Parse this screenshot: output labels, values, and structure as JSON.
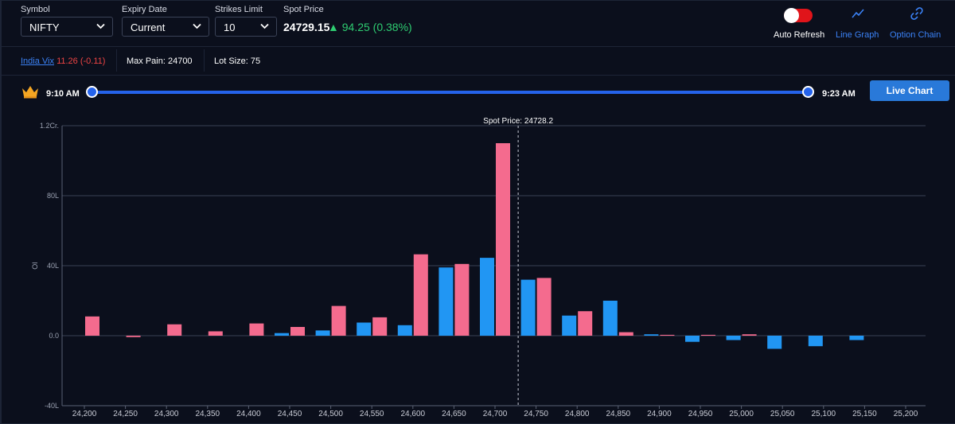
{
  "filters": {
    "symbol": {
      "label": "Symbol",
      "value": "NIFTY"
    },
    "expiry": {
      "label": "Expiry Date",
      "value": "Current"
    },
    "strikes": {
      "label": "Strikes Limit",
      "value": "10"
    }
  },
  "spot": {
    "label": "Spot Price",
    "price": "24729.15",
    "change": "▲ 94.25 (0.38%)",
    "change_color": "#2ecc71"
  },
  "actions": {
    "auto_refresh": "Auto Refresh",
    "auto_refresh_on": false,
    "line_graph": "Line Graph",
    "option_chain": "Option Chain",
    "accent": "#3b82f6"
  },
  "info": {
    "vix_label": "India Vix",
    "vix_value": "11.26 (-0.11)",
    "max_pain": "Max Pain: 24700",
    "lot_size": "Lot Size: 75"
  },
  "timeline": {
    "start": "9:10 AM",
    "end": "9:23 AM",
    "live_chart": "Live Chart"
  },
  "chart_data": {
    "type": "bar",
    "ylabel": "OI",
    "annotation": "Spot Price: 24728.2",
    "spot_x": 24728.2,
    "y_ticks": [
      {
        "v": -40,
        "label": "-40L"
      },
      {
        "v": 0,
        "label": "0.0"
      },
      {
        "v": 40,
        "label": "40L"
      },
      {
        "v": 80,
        "label": "80L"
      },
      {
        "v": 120,
        "label": "1.2Cr."
      }
    ],
    "ylim": [
      -40,
      120
    ],
    "x_ticks": [
      "24,200",
      "24,250",
      "24,300",
      "24,350",
      "24,400",
      "24,450",
      "24,500",
      "24,550",
      "24,600",
      "24,650",
      "24,700",
      "24,750",
      "24,800",
      "24,850",
      "24,900",
      "24,950",
      "25,000",
      "25,050",
      "25,100",
      "25,150",
      "25,200"
    ],
    "strikes": [
      24200,
      24250,
      24300,
      24350,
      24400,
      24450,
      24500,
      24550,
      24600,
      24650,
      24700,
      24750,
      24800,
      24850,
      24900,
      24950,
      25000,
      25050,
      25100,
      25150,
      25200
    ],
    "colors": {
      "put": "#f46b8e",
      "call": "#2196f3"
    },
    "series": [
      {
        "key": "put",
        "values": [
          11,
          -0.8,
          6.5,
          2.5,
          7,
          5,
          17,
          10.5,
          46.5,
          41,
          110,
          33,
          14,
          2,
          0.5,
          0.5,
          0.8,
          0,
          0,
          0,
          0
        ]
      },
      {
        "key": "call",
        "values": [
          0,
          0,
          0,
          0,
          0,
          1.5,
          3,
          7.5,
          6,
          39,
          44.5,
          32,
          11.5,
          20,
          0.8,
          -3.5,
          -2.5,
          -7.5,
          -6,
          -2.5,
          0
        ]
      }
    ]
  }
}
